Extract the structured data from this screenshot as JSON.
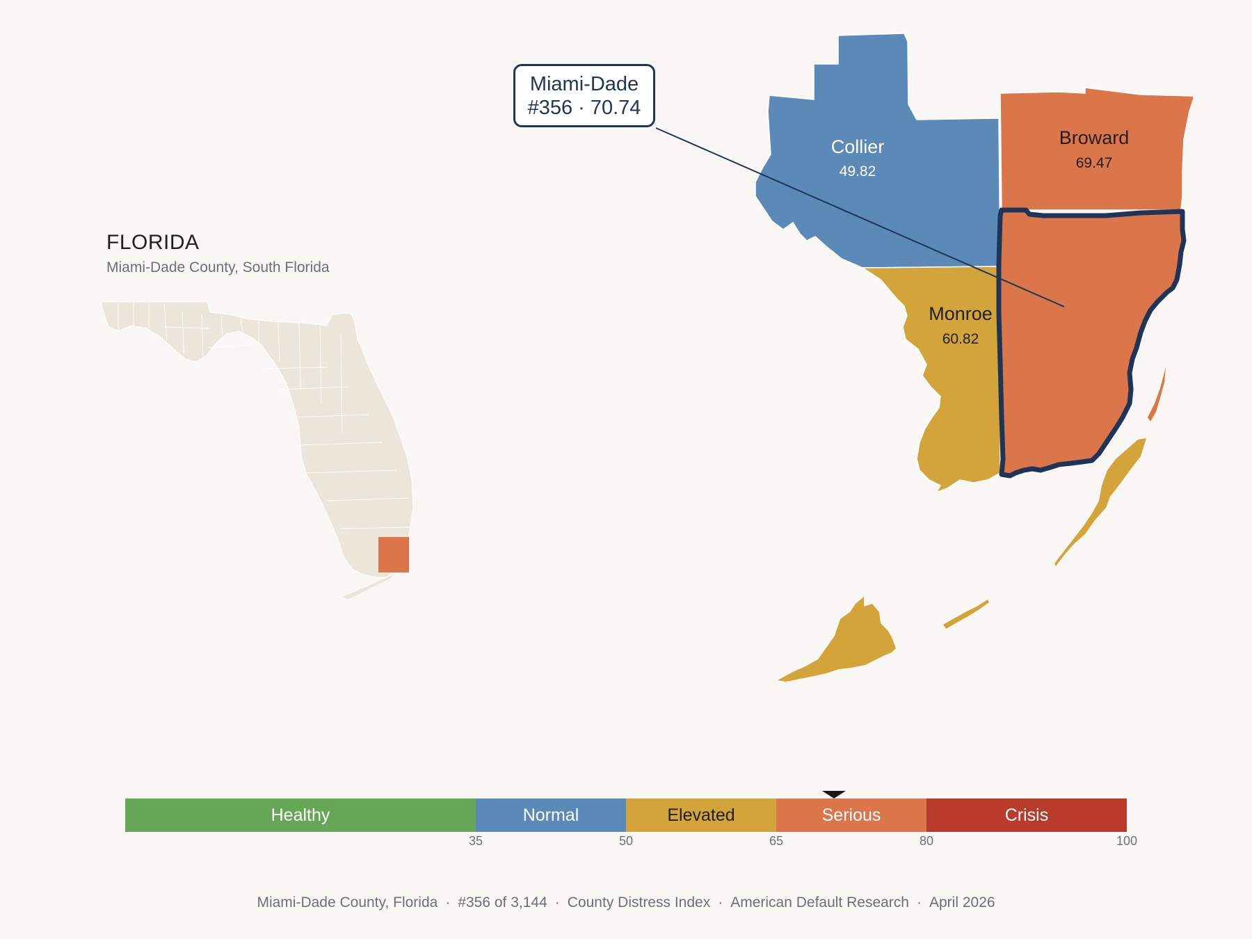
{
  "state": {
    "title": "FLORIDA",
    "subtitle": "Miami-Dade County, South Florida"
  },
  "callout": {
    "name": "Miami-Dade",
    "detail": "#356 · 70.74"
  },
  "counties": [
    {
      "name": "Collier",
      "score": "49.82",
      "category": "Normal",
      "color": "#5b89b8",
      "label_color": "#ffffff"
    },
    {
      "name": "Broward",
      "score": "69.47",
      "category": "Serious",
      "color": "#db764a",
      "label_color": "#1f1f1f"
    },
    {
      "name": "Monroe",
      "score": "60.82",
      "category": "Elevated",
      "color": "#d3a43a",
      "label_color": "#1f1f1f"
    },
    {
      "name": "Miami-Dade",
      "score": "70.74",
      "category": "Serious",
      "color": "#db764a",
      "label_color": "#1f1f1f",
      "highlight": true
    }
  ],
  "state_map": {
    "base_color": "#ebe5da",
    "highlight_color": "#db764a"
  },
  "highlight_outline_color": "#1e3558",
  "legend": {
    "min": 0,
    "max": 100,
    "marker_value": 70.74,
    "segments": [
      {
        "label": "Healthy",
        "from": 0,
        "to": 35,
        "color": "#66a757",
        "text_color": "#ffffff"
      },
      {
        "label": "Normal",
        "from": 35,
        "to": 50,
        "color": "#5b89b8",
        "text_color": "#ffffff"
      },
      {
        "label": "Elevated",
        "from": 50,
        "to": 65,
        "color": "#d3a43a",
        "text_color": "#1f1f1f"
      },
      {
        "label": "Serious",
        "from": 65,
        "to": 80,
        "color": "#db764a",
        "text_color": "#ffffff"
      },
      {
        "label": "Crisis",
        "from": 80,
        "to": 100,
        "color": "#b93b2b",
        "text_color": "#ffffff"
      }
    ],
    "ticks": [
      "35",
      "50",
      "65",
      "80",
      "100"
    ]
  },
  "footer": {
    "items": [
      "Miami-Dade County, Florida",
      "#356 of 3,144",
      "County Distress Index",
      "American Default Research",
      "April 2026"
    ],
    "separator": "·"
  }
}
